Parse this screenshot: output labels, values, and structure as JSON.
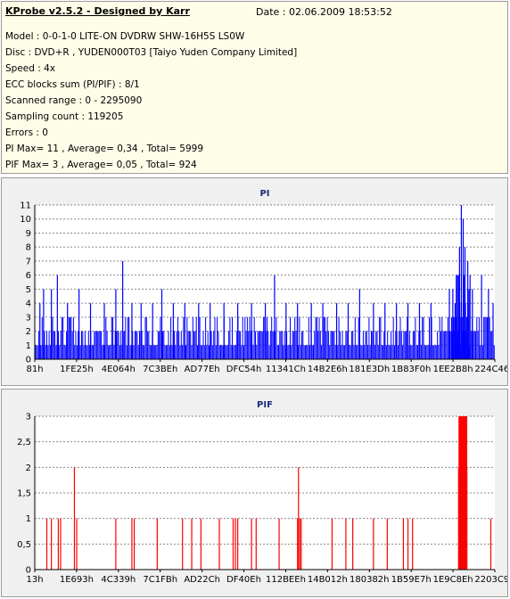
{
  "header": {
    "app_title": "KProbe v2.5.2 - Designed by Karr",
    "date": "Date : 02.06.2009 18:53:52"
  },
  "info": [
    "Model : 0-0-1-0 LITE-ON DVDRW SHW-16H5S  LS0W",
    "Disc : DVD+R , YUDEN000T03 [Taiyo Yuden Company Limited]",
    "Speed : 4x",
    "ECC blocks sum (PI/PIF) : 8/1",
    "Scanned range : 0 - 2295090",
    "Sampling count : 119205",
    "Errors : 0",
    "PI Max= 11 , Average= 0,34 , Total= 5999",
    "PIF Max= 3 , Average= 0,05 , Total= 924"
  ],
  "chart_data": [
    {
      "type": "bar",
      "title": "PI",
      "color": "#0000ff",
      "ylim": [
        0,
        11
      ],
      "yticks": [
        "0",
        "1",
        "2",
        "3",
        "4",
        "5",
        "6",
        "7",
        "8",
        "9",
        "10",
        "11"
      ],
      "xticks": [
        "81h",
        "1FE25h",
        "4E064h",
        "7C3BEh",
        "AD77Eh",
        "DFC54h",
        "11341Ch",
        "14B2E6h",
        "181E3Dh",
        "1B83F0h",
        "1EE2B8h",
        "224C46h"
      ],
      "grid": true,
      "baseline": "0-2 dense across whole range",
      "peaks": [
        {
          "x": 0.01,
          "y": 4
        },
        {
          "x": 0.018,
          "y": 5
        },
        {
          "x": 0.035,
          "y": 5
        },
        {
          "x": 0.048,
          "y": 6
        },
        {
          "x": 0.07,
          "y": 4
        },
        {
          "x": 0.095,
          "y": 5
        },
        {
          "x": 0.12,
          "y": 4
        },
        {
          "x": 0.15,
          "y": 4
        },
        {
          "x": 0.175,
          "y": 5
        },
        {
          "x": 0.19,
          "y": 7
        },
        {
          "x": 0.21,
          "y": 4
        },
        {
          "x": 0.23,
          "y": 4
        },
        {
          "x": 0.255,
          "y": 4
        },
        {
          "x": 0.275,
          "y": 5
        },
        {
          "x": 0.3,
          "y": 4
        },
        {
          "x": 0.325,
          "y": 4
        },
        {
          "x": 0.355,
          "y": 4
        },
        {
          "x": 0.38,
          "y": 4
        },
        {
          "x": 0.41,
          "y": 4
        },
        {
          "x": 0.44,
          "y": 4
        },
        {
          "x": 0.47,
          "y": 4
        },
        {
          "x": 0.5,
          "y": 4
        },
        {
          "x": 0.52,
          "y": 6
        },
        {
          "x": 0.545,
          "y": 4
        },
        {
          "x": 0.57,
          "y": 4
        },
        {
          "x": 0.6,
          "y": 4
        },
        {
          "x": 0.625,
          "y": 4
        },
        {
          "x": 0.655,
          "y": 4
        },
        {
          "x": 0.68,
          "y": 4
        },
        {
          "x": 0.705,
          "y": 5
        },
        {
          "x": 0.735,
          "y": 4
        },
        {
          "x": 0.76,
          "y": 4
        },
        {
          "x": 0.785,
          "y": 4
        },
        {
          "x": 0.81,
          "y": 4
        },
        {
          "x": 0.835,
          "y": 4
        },
        {
          "x": 0.86,
          "y": 4
        },
        {
          "x": 0.9,
          "y": 5
        },
        {
          "x": 0.915,
          "y": 6
        },
        {
          "x": 0.922,
          "y": 8
        },
        {
          "x": 0.926,
          "y": 11
        },
        {
          "x": 0.93,
          "y": 10
        },
        {
          "x": 0.934,
          "y": 8
        },
        {
          "x": 0.94,
          "y": 7
        },
        {
          "x": 0.95,
          "y": 5
        },
        {
          "x": 0.97,
          "y": 6
        },
        {
          "x": 0.985,
          "y": 5
        },
        {
          "x": 0.995,
          "y": 4
        }
      ]
    },
    {
      "type": "bar",
      "title": "PIF",
      "color": "#ff0000",
      "ylim": [
        0,
        3
      ],
      "yticks": [
        "0",
        "0,5",
        "1",
        "1,5",
        "2",
        "2,5",
        "3"
      ],
      "xticks": [
        "13h",
        "1E693h",
        "4C339h",
        "7C1FBh",
        "AD22Ch",
        "DF40Eh",
        "112BEEh",
        "14B012h",
        "180382h",
        "1B59E7h",
        "1E9C8Eh",
        "2203C9h"
      ],
      "grid": true,
      "bars": [
        {
          "x": 0.025,
          "y": 1
        },
        {
          "x": 0.035,
          "y": 1
        },
        {
          "x": 0.05,
          "y": 1
        },
        {
          "x": 0.055,
          "y": 1
        },
        {
          "x": 0.085,
          "y": 2
        },
        {
          "x": 0.09,
          "y": 1
        },
        {
          "x": 0.175,
          "y": 1
        },
        {
          "x": 0.21,
          "y": 1
        },
        {
          "x": 0.215,
          "y": 1
        },
        {
          "x": 0.265,
          "y": 1
        },
        {
          "x": 0.32,
          "y": 1
        },
        {
          "x": 0.34,
          "y": 1
        },
        {
          "x": 0.36,
          "y": 1
        },
        {
          "x": 0.4,
          "y": 1
        },
        {
          "x": 0.43,
          "y": 1
        },
        {
          "x": 0.435,
          "y": 1
        },
        {
          "x": 0.44,
          "y": 1
        },
        {
          "x": 0.47,
          "y": 1
        },
        {
          "x": 0.48,
          "y": 1
        },
        {
          "x": 0.53,
          "y": 1
        },
        {
          "x": 0.57,
          "y": 1
        },
        {
          "x": 0.572,
          "y": 2
        },
        {
          "x": 0.575,
          "y": 1
        },
        {
          "x": 0.578,
          "y": 1
        },
        {
          "x": 0.645,
          "y": 1
        },
        {
          "x": 0.675,
          "y": 1
        },
        {
          "x": 0.69,
          "y": 1
        },
        {
          "x": 0.735,
          "y": 1
        },
        {
          "x": 0.765,
          "y": 1
        },
        {
          "x": 0.8,
          "y": 1
        },
        {
          "x": 0.81,
          "y": 1
        },
        {
          "x": 0.82,
          "y": 1
        },
        {
          "x": 0.92,
          "y": 2
        },
        {
          "x": 0.923,
          "y": 3
        },
        {
          "x": 0.926,
          "y": 3
        },
        {
          "x": 0.929,
          "y": 3
        },
        {
          "x": 0.932,
          "y": 3
        },
        {
          "x": 0.935,
          "y": 3
        },
        {
          "x": 0.938,
          "y": 2
        },
        {
          "x": 0.99,
          "y": 1
        }
      ]
    }
  ]
}
